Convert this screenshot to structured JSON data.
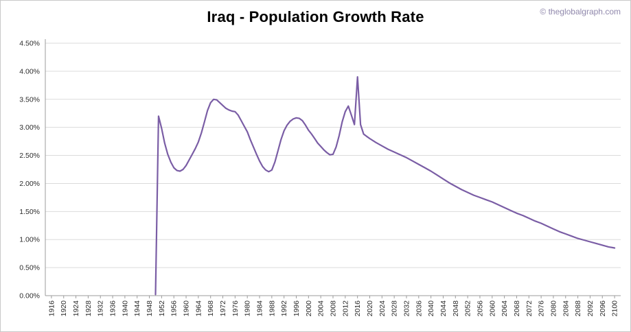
{
  "header": {
    "title": "Iraq - Population Growth Rate",
    "watermark": "© theglobalgraph.com"
  },
  "chart_data": {
    "type": "line",
    "title": "Iraq - Population Growth Rate",
    "xlabel": "",
    "ylabel": "",
    "legend": "none",
    "grid": true,
    "xlim": [
      1914,
      2102
    ],
    "ylim": [
      0,
      4.5
    ],
    "x_ticks": [
      1916,
      1920,
      1924,
      1928,
      1932,
      1936,
      1940,
      1944,
      1948,
      1952,
      1956,
      1960,
      1964,
      1968,
      1972,
      1976,
      1980,
      1984,
      1988,
      1992,
      1996,
      2000,
      2004,
      2008,
      2012,
      2016,
      2020,
      2024,
      2028,
      2032,
      2036,
      2040,
      2044,
      2048,
      2052,
      2056,
      2060,
      2064,
      2068,
      2072,
      2076,
      2080,
      2084,
      2088,
      2092,
      2096,
      2100
    ],
    "y_ticks": [
      {
        "value": 0.0,
        "label": "0.00%"
      },
      {
        "value": 0.5,
        "label": "0.50%"
      },
      {
        "value": 1.0,
        "label": "1.00%"
      },
      {
        "value": 1.5,
        "label": "1.50%"
      },
      {
        "value": 2.0,
        "label": "2.00%"
      },
      {
        "value": 2.5,
        "label": "2.50%"
      },
      {
        "value": 3.0,
        "label": "3.00%"
      },
      {
        "value": 3.5,
        "label": "3.50%"
      },
      {
        "value": 4.0,
        "label": "4.00%"
      },
      {
        "value": 4.5,
        "label": "4.50%"
      }
    ],
    "colors": {
      "grid": "#dbdbdb",
      "axis": "#9b9b9b",
      "text": "#2b2b2b"
    },
    "series": [
      {
        "name": "Iraq population growth rate (%)",
        "color": "#7a5da5",
        "points": [
          [
            1950,
            0.02
          ],
          [
            1951,
            3.2
          ],
          [
            1952,
            2.98
          ],
          [
            1953,
            2.72
          ],
          [
            1954,
            2.52
          ],
          [
            1955,
            2.38
          ],
          [
            1956,
            2.28
          ],
          [
            1957,
            2.23
          ],
          [
            1958,
            2.22
          ],
          [
            1959,
            2.25
          ],
          [
            1960,
            2.32
          ],
          [
            1961,
            2.42
          ],
          [
            1962,
            2.52
          ],
          [
            1963,
            2.62
          ],
          [
            1964,
            2.74
          ],
          [
            1965,
            2.9
          ],
          [
            1966,
            3.1
          ],
          [
            1967,
            3.3
          ],
          [
            1968,
            3.44
          ],
          [
            1969,
            3.5
          ],
          [
            1970,
            3.49
          ],
          [
            1971,
            3.44
          ],
          [
            1972,
            3.39
          ],
          [
            1973,
            3.34
          ],
          [
            1974,
            3.31
          ],
          [
            1975,
            3.29
          ],
          [
            1976,
            3.28
          ],
          [
            1977,
            3.22
          ],
          [
            1978,
            3.12
          ],
          [
            1979,
            3.02
          ],
          [
            1980,
            2.92
          ],
          [
            1981,
            2.78
          ],
          [
            1982,
            2.65
          ],
          [
            1983,
            2.52
          ],
          [
            1984,
            2.4
          ],
          [
            1985,
            2.3
          ],
          [
            1986,
            2.24
          ],
          [
            1987,
            2.21
          ],
          [
            1988,
            2.24
          ],
          [
            1989,
            2.38
          ],
          [
            1990,
            2.58
          ],
          [
            1991,
            2.78
          ],
          [
            1992,
            2.94
          ],
          [
            1993,
            3.04
          ],
          [
            1994,
            3.11
          ],
          [
            1995,
            3.15
          ],
          [
            1996,
            3.17
          ],
          [
            1997,
            3.16
          ],
          [
            1998,
            3.12
          ],
          [
            1999,
            3.04
          ],
          [
            2000,
            2.95
          ],
          [
            2001,
            2.88
          ],
          [
            2002,
            2.8
          ],
          [
            2003,
            2.72
          ],
          [
            2004,
            2.66
          ],
          [
            2005,
            2.6
          ],
          [
            2006,
            2.55
          ],
          [
            2007,
            2.51
          ],
          [
            2008,
            2.52
          ],
          [
            2009,
            2.65
          ],
          [
            2010,
            2.85
          ],
          [
            2011,
            3.1
          ],
          [
            2012,
            3.28
          ],
          [
            2013,
            3.38
          ],
          [
            2014,
            3.22
          ],
          [
            2015,
            3.05
          ],
          [
            2016,
            3.9
          ],
          [
            2017,
            3.05
          ],
          [
            2018,
            2.88
          ],
          [
            2019,
            2.84
          ],
          [
            2020,
            2.8
          ],
          [
            2022,
            2.73
          ],
          [
            2024,
            2.67
          ],
          [
            2026,
            2.61
          ],
          [
            2028,
            2.56
          ],
          [
            2030,
            2.51
          ],
          [
            2032,
            2.46
          ],
          [
            2034,
            2.4
          ],
          [
            2036,
            2.34
          ],
          [
            2038,
            2.28
          ],
          [
            2040,
            2.22
          ],
          [
            2042,
            2.15
          ],
          [
            2044,
            2.08
          ],
          [
            2046,
            2.01
          ],
          [
            2048,
            1.95
          ],
          [
            2050,
            1.89
          ],
          [
            2052,
            1.84
          ],
          [
            2054,
            1.79
          ],
          [
            2056,
            1.75
          ],
          [
            2058,
            1.71
          ],
          [
            2060,
            1.67
          ],
          [
            2062,
            1.62
          ],
          [
            2064,
            1.57
          ],
          [
            2066,
            1.52
          ],
          [
            2068,
            1.47
          ],
          [
            2070,
            1.43
          ],
          [
            2072,
            1.38
          ],
          [
            2074,
            1.33
          ],
          [
            2076,
            1.29
          ],
          [
            2078,
            1.24
          ],
          [
            2080,
            1.19
          ],
          [
            2082,
            1.14
          ],
          [
            2084,
            1.1
          ],
          [
            2086,
            1.06
          ],
          [
            2088,
            1.02
          ],
          [
            2090,
            0.99
          ],
          [
            2092,
            0.96
          ],
          [
            2094,
            0.93
          ],
          [
            2096,
            0.9
          ],
          [
            2098,
            0.87
          ],
          [
            2100,
            0.85
          ]
        ]
      }
    ]
  }
}
